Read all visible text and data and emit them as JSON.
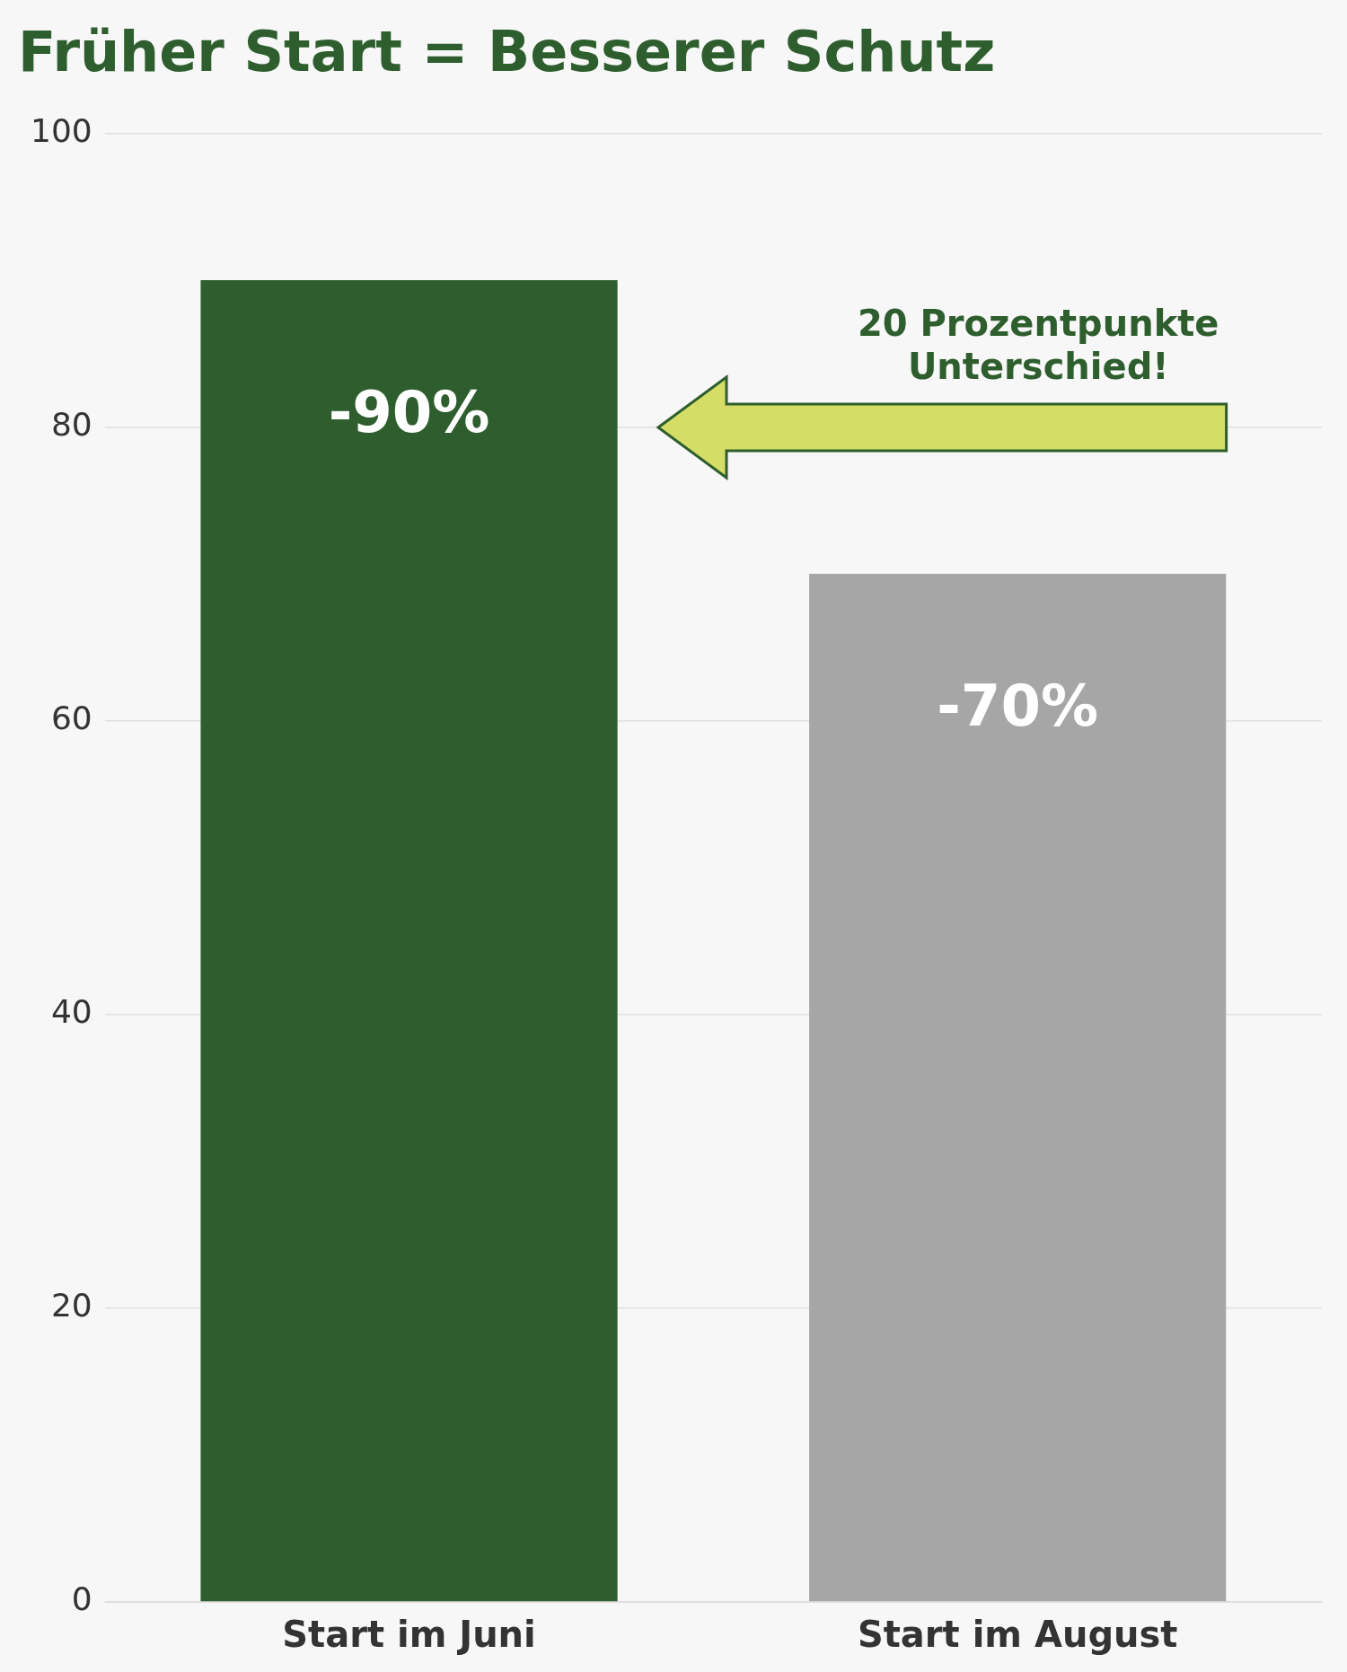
{
  "chart_data": {
    "type": "bar",
    "title": "Früher Start = Besserer Schutz",
    "categories": [
      "Start im Juni",
      "Start im August"
    ],
    "values": [
      90,
      70
    ],
    "colors": [
      "#2e5e2e",
      "#a6a6a6"
    ],
    "ylim": [
      0,
      100
    ],
    "yticks": [
      0,
      20,
      40,
      60,
      80,
      100
    ],
    "grid": "y",
    "annotations": [
      "20 Prozentpunkte Unterschied!",
      "-90%",
      "-70%"
    ]
  }
}
